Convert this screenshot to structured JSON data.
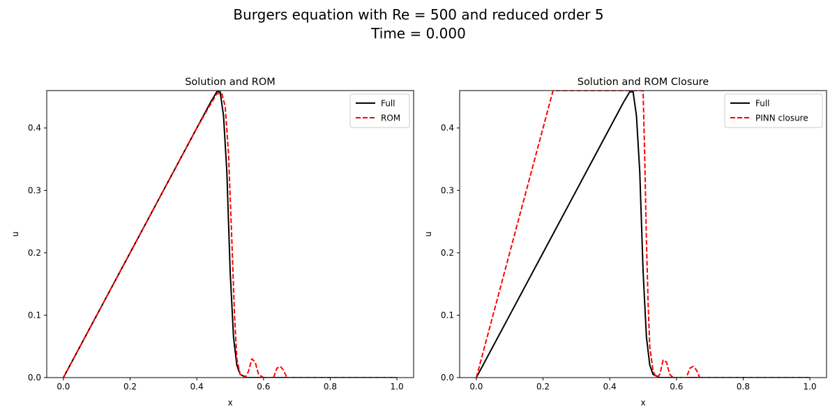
{
  "figure": {
    "title_line1": "Burgers equation with Re = 500 and reduced order 5",
    "title_line2": "Time = 0.000"
  },
  "colors": {
    "full": "#000000",
    "rom": "#ff0000"
  },
  "chart_data": [
    {
      "type": "line",
      "title": "Solution and ROM",
      "xlabel": "x",
      "ylabel": "u",
      "xlim": [
        -0.05,
        1.05
      ],
      "ylim": [
        0.0,
        0.46
      ],
      "xticks": [
        "0.0",
        "0.2",
        "0.4",
        "0.6",
        "0.8",
        "1.0"
      ],
      "yticks": [
        "0.0",
        "0.1",
        "0.2",
        "0.3",
        "0.4"
      ],
      "grid": false,
      "legend_position": "top-right",
      "series": [
        {
          "name": "Full",
          "color": "#000000",
          "style": "solid",
          "points": [
            [
              0.0,
              0.0
            ],
            [
              0.1,
              0.1
            ],
            [
              0.2,
              0.2
            ],
            [
              0.3,
              0.3
            ],
            [
              0.4,
              0.4
            ],
            [
              0.44,
              0.44
            ],
            [
              0.46,
              0.458
            ],
            [
              0.47,
              0.458
            ],
            [
              0.48,
              0.42
            ],
            [
              0.49,
              0.33
            ],
            [
              0.5,
              0.17
            ],
            [
              0.51,
              0.065
            ],
            [
              0.52,
              0.02
            ],
            [
              0.53,
              0.005
            ],
            [
              0.55,
              0.0
            ],
            [
              0.6,
              0.0
            ],
            [
              0.7,
              0.0
            ],
            [
              0.8,
              0.0
            ],
            [
              0.9,
              0.0
            ],
            [
              1.0,
              0.0
            ]
          ]
        },
        {
          "name": "ROM",
          "color": "#ff0000",
          "style": "dashed",
          "points": [
            [
              0.0,
              0.0
            ],
            [
              0.1,
              0.1
            ],
            [
              0.2,
              0.2
            ],
            [
              0.3,
              0.3
            ],
            [
              0.4,
              0.4
            ],
            [
              0.44,
              0.437
            ],
            [
              0.46,
              0.455
            ],
            [
              0.475,
              0.455
            ],
            [
              0.485,
              0.435
            ],
            [
              0.495,
              0.36
            ],
            [
              0.505,
              0.22
            ],
            [
              0.513,
              0.1
            ],
            [
              0.52,
              0.03
            ],
            [
              0.53,
              0.005
            ],
            [
              0.545,
              0.0
            ],
            [
              0.555,
              0.01
            ],
            [
              0.565,
              0.03
            ],
            [
              0.575,
              0.025
            ],
            [
              0.585,
              0.005
            ],
            [
              0.6,
              0.0
            ],
            [
              0.63,
              0.0
            ],
            [
              0.64,
              0.015
            ],
            [
              0.65,
              0.018
            ],
            [
              0.66,
              0.012
            ],
            [
              0.67,
              0.0
            ],
            [
              0.7,
              0.0
            ],
            [
              0.8,
              0.0
            ],
            [
              0.9,
              0.0
            ],
            [
              1.0,
              0.0
            ]
          ]
        }
      ]
    },
    {
      "type": "line",
      "title": "Solution and ROM Closure",
      "xlabel": "x",
      "ylabel": "u",
      "xlim": [
        -0.05,
        1.05
      ],
      "ylim": [
        0.0,
        0.46
      ],
      "xticks": [
        "0.0",
        "0.2",
        "0.4",
        "0.6",
        "0.8",
        "1.0"
      ],
      "yticks": [
        "0.0",
        "0.1",
        "0.2",
        "0.3",
        "0.4"
      ],
      "grid": false,
      "legend_position": "top-right",
      "series": [
        {
          "name": "Full",
          "color": "#000000",
          "style": "solid",
          "points": [
            [
              0.0,
              0.0
            ],
            [
              0.1,
              0.1
            ],
            [
              0.2,
              0.2
            ],
            [
              0.3,
              0.3
            ],
            [
              0.4,
              0.4
            ],
            [
              0.44,
              0.44
            ],
            [
              0.46,
              0.458
            ],
            [
              0.47,
              0.458
            ],
            [
              0.48,
              0.42
            ],
            [
              0.49,
              0.33
            ],
            [
              0.5,
              0.17
            ],
            [
              0.51,
              0.065
            ],
            [
              0.52,
              0.02
            ],
            [
              0.53,
              0.005
            ],
            [
              0.55,
              0.0
            ],
            [
              0.6,
              0.0
            ],
            [
              0.7,
              0.0
            ],
            [
              0.8,
              0.0
            ],
            [
              0.9,
              0.0
            ],
            [
              1.0,
              0.0
            ]
          ]
        },
        {
          "name": "PINN closure",
          "color": "#ff0000",
          "style": "dashed",
          "points": [
            [
              0.0,
              0.0
            ],
            [
              0.05,
              0.1
            ],
            [
              0.1,
              0.2
            ],
            [
              0.15,
              0.3
            ],
            [
              0.2,
              0.4
            ],
            [
              0.23,
              0.46
            ],
            [
              0.5,
              0.46
            ],
            [
              0.505,
              0.35
            ],
            [
              0.51,
              0.22
            ],
            [
              0.515,
              0.12
            ],
            [
              0.52,
              0.05
            ],
            [
              0.53,
              0.01
            ],
            [
              0.54,
              0.0
            ],
            [
              0.55,
              0.005
            ],
            [
              0.56,
              0.028
            ],
            [
              0.57,
              0.025
            ],
            [
              0.58,
              0.005
            ],
            [
              0.59,
              0.0
            ],
            [
              0.63,
              0.0
            ],
            [
              0.64,
              0.015
            ],
            [
              0.65,
              0.018
            ],
            [
              0.66,
              0.012
            ],
            [
              0.67,
              0.0
            ],
            [
              0.7,
              0.0
            ],
            [
              0.8,
              0.0
            ],
            [
              0.9,
              0.0
            ],
            [
              1.0,
              0.0
            ]
          ]
        }
      ]
    }
  ]
}
